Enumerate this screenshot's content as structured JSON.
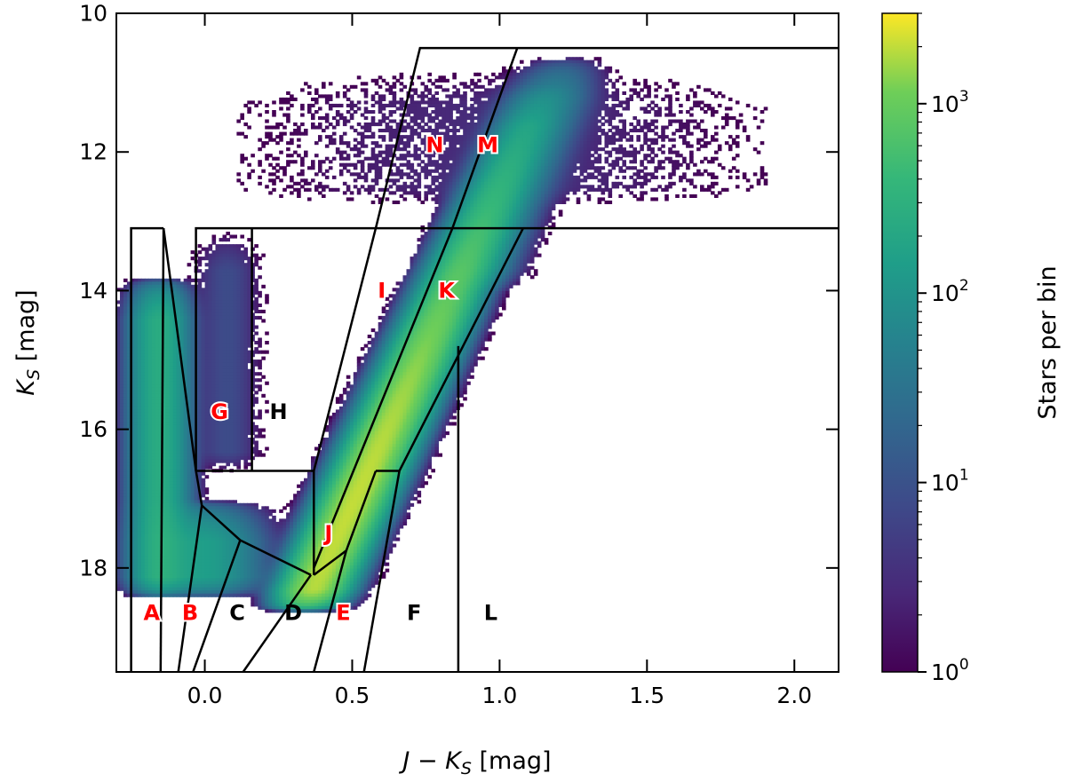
{
  "chart_data": {
    "type": "heatmap",
    "title": "",
    "xlabel": "J − K_S [mag]",
    "ylabel": "K_S [mag]",
    "xlabel_parts": {
      "main": "J − K",
      "sub": "S",
      "unit": " [mag]"
    },
    "ylabel_parts": {
      "main": "K",
      "sub": "S",
      "unit": " [mag]"
    },
    "xlim": [
      -0.3,
      2.15
    ],
    "ylim": [
      19.5,
      10
    ],
    "y_inverted": true,
    "x_ticks": [
      {
        "value": 0.0,
        "label": "0.0"
      },
      {
        "value": 0.5,
        "label": "0.5"
      },
      {
        "value": 1.0,
        "label": "1.0"
      },
      {
        "value": 1.5,
        "label": "1.5"
      },
      {
        "value": 2.0,
        "label": "2.0"
      }
    ],
    "y_ticks": [
      {
        "value": 10,
        "label": "10"
      },
      {
        "value": 12,
        "label": "12"
      },
      {
        "value": 14,
        "label": "14"
      },
      {
        "value": 16,
        "label": "16"
      },
      {
        "value": 18,
        "label": "18"
      }
    ],
    "colorbar": {
      "label": "Stars per bin",
      "scale": "log",
      "colormap": "viridis",
      "range": [
        1,
        3000
      ],
      "ticks": [
        {
          "value": 1,
          "base": "10",
          "exp": "0"
        },
        {
          "value": 10,
          "base": "10",
          "exp": "1"
        },
        {
          "value": 100,
          "base": "10",
          "exp": "2"
        },
        {
          "value": 1000,
          "base": "10",
          "exp": "3"
        }
      ]
    },
    "density_components": [
      {
        "name": "giant-sequence",
        "x0": 0.47,
        "y0": 17.3,
        "slope": -0.108,
        "sigma_x": 0.055,
        "y_range": [
          11.0,
          18.6
        ],
        "peak": 2000
      },
      {
        "name": "giant-sequence-bright",
        "x0": 0.5,
        "y0": 17.8,
        "slope": -0.1,
        "sigma_x": 0.07,
        "y_range": [
          10.6,
          14.0
        ],
        "peak": 60
      },
      {
        "name": "blue-main-sequence",
        "x0": -0.16,
        "y0": 17.8,
        "slope": 0.0,
        "sigma_x": 0.05,
        "y_range": [
          13.8,
          18.4
        ],
        "peak": 250
      },
      {
        "name": "faint-blob-B",
        "x0": -0.02,
        "y0": 18.0,
        "slope": 0.0,
        "sigma_x": 0.1,
        "y_range": [
          17.0,
          18.4
        ],
        "peak": 150
      },
      {
        "name": "G-strip",
        "x0": 0.07,
        "y0": 15.5,
        "slope": 0.0,
        "sigma_x": 0.06,
        "y_range": [
          13.1,
          16.6
        ],
        "peak": 8
      },
      {
        "name": "red-tail",
        "x0": 1.0,
        "y0": 11.3,
        "slope": 0.0,
        "sigma_x": 0.5,
        "y_range": [
          10.7,
          12.8
        ],
        "peak": 3
      }
    ],
    "regions": [
      {
        "label": "A",
        "color": "#ff0000",
        "x": -0.18,
        "y": 18.65
      },
      {
        "label": "B",
        "color": "#ff0000",
        "x": -0.05,
        "y": 18.65
      },
      {
        "label": "C",
        "color": "#000000",
        "x": 0.11,
        "y": 18.65
      },
      {
        "label": "D",
        "color": "#000000",
        "x": 0.3,
        "y": 18.65
      },
      {
        "label": "E",
        "color": "#ff0000",
        "x": 0.47,
        "y": 18.65
      },
      {
        "label": "F",
        "color": "#000000",
        "x": 0.71,
        "y": 18.65
      },
      {
        "label": "L",
        "color": "#000000",
        "x": 0.97,
        "y": 18.65
      },
      {
        "label": "G",
        "color": "#ff0000",
        "x": 0.05,
        "y": 15.75
      },
      {
        "label": "H",
        "color": "#000000",
        "x": 0.25,
        "y": 15.75
      },
      {
        "label": "I",
        "color": "#ff0000",
        "x": 0.6,
        "y": 14.0
      },
      {
        "label": "K",
        "color": "#ff0000",
        "x": 0.82,
        "y": 14.0
      },
      {
        "label": "J",
        "color": "#ff0000",
        "x": 0.42,
        "y": 17.5
      },
      {
        "label": "N",
        "color": "#ff0000",
        "x": 0.78,
        "y": 11.9
      },
      {
        "label": "M",
        "color": "#ff0000",
        "x": 0.96,
        "y": 11.9
      }
    ],
    "boundaries": [
      [
        [
          -0.25,
          19.5
        ],
        [
          -0.25,
          13.1
        ],
        [
          -0.14,
          13.1
        ]
      ],
      [
        [
          -0.14,
          13.1
        ],
        [
          -0.03,
          16.6
        ],
        [
          -0.01,
          17.1
        ],
        [
          0.12,
          17.6
        ],
        [
          0.36,
          18.1
        ]
      ],
      [
        [
          -0.01,
          17.1
        ],
        [
          -0.09,
          19.5
        ]
      ],
      [
        [
          -0.14,
          13.1
        ],
        [
          -0.15,
          19.5
        ]
      ],
      [
        [
          0.12,
          17.6
        ],
        [
          -0.04,
          19.5
        ]
      ],
      [
        [
          -0.03,
          16.6
        ],
        [
          0.37,
          16.6
        ]
      ],
      [
        [
          -0.03,
          16.6
        ],
        [
          -0.03,
          13.1
        ],
        [
          2.15,
          13.1
        ]
      ],
      [
        [
          0.16,
          13.1
        ],
        [
          0.16,
          16.6
        ]
      ],
      [
        [
          0.37,
          16.6
        ],
        [
          0.37,
          18.1
        ]
      ],
      [
        [
          0.36,
          18.1
        ],
        [
          0.13,
          19.5
        ]
      ],
      [
        [
          0.37,
          18.1
        ],
        [
          0.48,
          17.75
        ],
        [
          0.37,
          19.5
        ]
      ],
      [
        [
          0.37,
          16.6
        ],
        [
          0.58,
          13.1
        ]
      ],
      [
        [
          0.37,
          18.0
        ],
        [
          0.84,
          13.1
        ]
      ],
      [
        [
          0.48,
          17.75
        ],
        [
          0.58,
          16.6
        ]
      ],
      [
        [
          0.58,
          16.6
        ],
        [
          0.66,
          16.6
        ]
      ],
      [
        [
          0.66,
          16.6
        ],
        [
          0.54,
          19.5
        ]
      ],
      [
        [
          0.66,
          16.6
        ],
        [
          1.08,
          13.1
        ]
      ],
      [
        [
          0.58,
          13.1
        ],
        [
          0.73,
          10.5
        ],
        [
          2.15,
          10.5
        ]
      ],
      [
        [
          0.84,
          13.1
        ],
        [
          1.06,
          10.5
        ]
      ],
      [
        [
          0.86,
          14.8
        ],
        [
          0.86,
          19.5
        ]
      ]
    ]
  }
}
